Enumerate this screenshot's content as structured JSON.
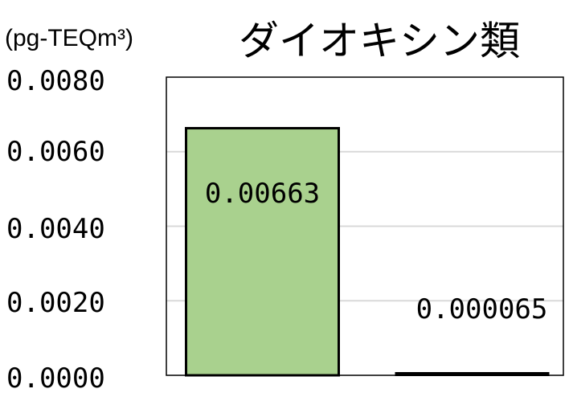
{
  "chart_data": {
    "type": "bar",
    "title": "ダイオキシン類",
    "ylabel": "(pg-TEQm³)",
    "xlabel": "",
    "ylim": [
      0,
      0.008
    ],
    "yticks": [
      "0.0080",
      "0.0060",
      "0.0040",
      "0.0020",
      "0.0000"
    ],
    "grid": true,
    "values": [
      0.00663,
      6.5e-05
    ],
    "data_labels": [
      "0.00663",
      "0.000065"
    ],
    "bar_colors": [
      "#a9d18e",
      "#000000"
    ]
  },
  "colors": {
    "bar_fill": "#a9d18e",
    "bar_stroke": "#000000",
    "gridline": "#d9d9d9",
    "frame": "#000000"
  }
}
